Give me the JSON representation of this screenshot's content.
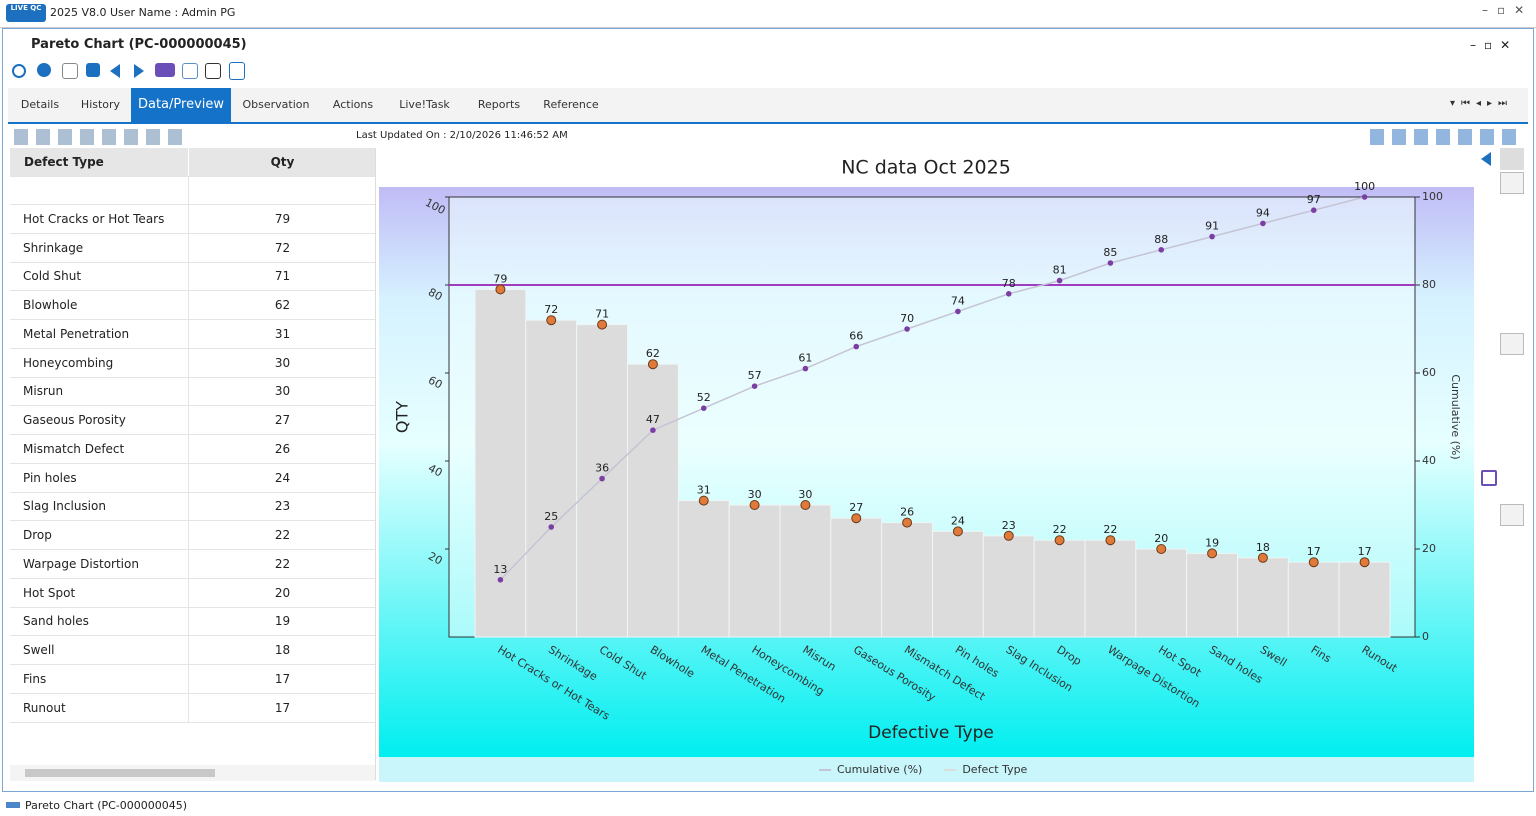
{
  "window": {
    "logo": "LIVE QC",
    "title": "2025 V8.0 User Name : Admin PG"
  },
  "document": {
    "title": "Pareto Chart (PC-000000045)"
  },
  "tabs": [
    "Details",
    "History",
    "Data/Preview",
    "Observation",
    "Actions",
    "Live!Task",
    "Reports",
    "Reference"
  ],
  "active_tab": 2,
  "last_updated": "Last Updated On : 2/10/2026 11:46:52 AM",
  "table": {
    "columns": [
      "Defect Type",
      "Qty"
    ],
    "rows": [
      [
        "Hot Cracks or Hot Tears",
        79
      ],
      [
        "Shrinkage",
        72
      ],
      [
        "Cold Shut",
        71
      ],
      [
        "Blowhole",
        62
      ],
      [
        "Metal Penetration",
        31
      ],
      [
        "Honeycombing",
        30
      ],
      [
        "Misrun",
        30
      ],
      [
        "Gaseous Porosity",
        27
      ],
      [
        "Mismatch Defect",
        26
      ],
      [
        "Pin holes",
        24
      ],
      [
        "Slag Inclusion",
        23
      ],
      [
        "Drop",
        22
      ],
      [
        "Warpage Distortion",
        22
      ],
      [
        "Hot Spot",
        20
      ],
      [
        "Sand holes",
        19
      ],
      [
        "Swell",
        18
      ],
      [
        "Fins",
        17
      ],
      [
        "Runout",
        17
      ]
    ]
  },
  "chart_data": {
    "type": "pareto",
    "title": "NC data Oct 2025",
    "xlabel": "Defective Type",
    "ylabel": "QTY",
    "y2label": "Cumulative (%)",
    "categories": [
      "Hot Cracks or Hot Tears",
      "Shrinkage",
      "Cold Shut",
      "Blowhole",
      "Metal Penetration",
      "Honeycombing",
      "Misrun",
      "Gaseous Porosity",
      "Mismatch Defect",
      "Pin holes",
      "Slag Inclusion",
      "Drop",
      "Warpage Distortion",
      "Hot Spot",
      "Sand holes",
      "Swell",
      "Fins",
      "Runout"
    ],
    "series": [
      {
        "name": "Cumulative (%)",
        "color": "#c4c4d4",
        "marker_color": "#7b3fa3",
        "axis": "y2",
        "values": [
          13,
          25,
          36,
          47,
          52,
          57,
          61,
          66,
          70,
          74,
          78,
          81,
          85,
          88,
          91,
          94,
          97,
          100
        ]
      },
      {
        "name": "Defect Type",
        "color": "#dcdcdc",
        "marker_color": "#e07a3a",
        "values": [
          79,
          72,
          71,
          62,
          31,
          30,
          30,
          27,
          26,
          24,
          23,
          22,
          22,
          20,
          19,
          18,
          17,
          17
        ]
      }
    ],
    "ylim": [
      0,
      100
    ],
    "yticks": [
      20,
      40,
      60,
      80,
      100
    ],
    "y2lim": [
      0,
      100
    ],
    "y2ticks": [
      0,
      20,
      40,
      60,
      80,
      100
    ],
    "reference_line": {
      "axis": "y2",
      "value": 80,
      "color": "#a03cc0"
    },
    "legend": "bottom"
  },
  "status_bar": "Pareto Chart (PC-000000045)"
}
